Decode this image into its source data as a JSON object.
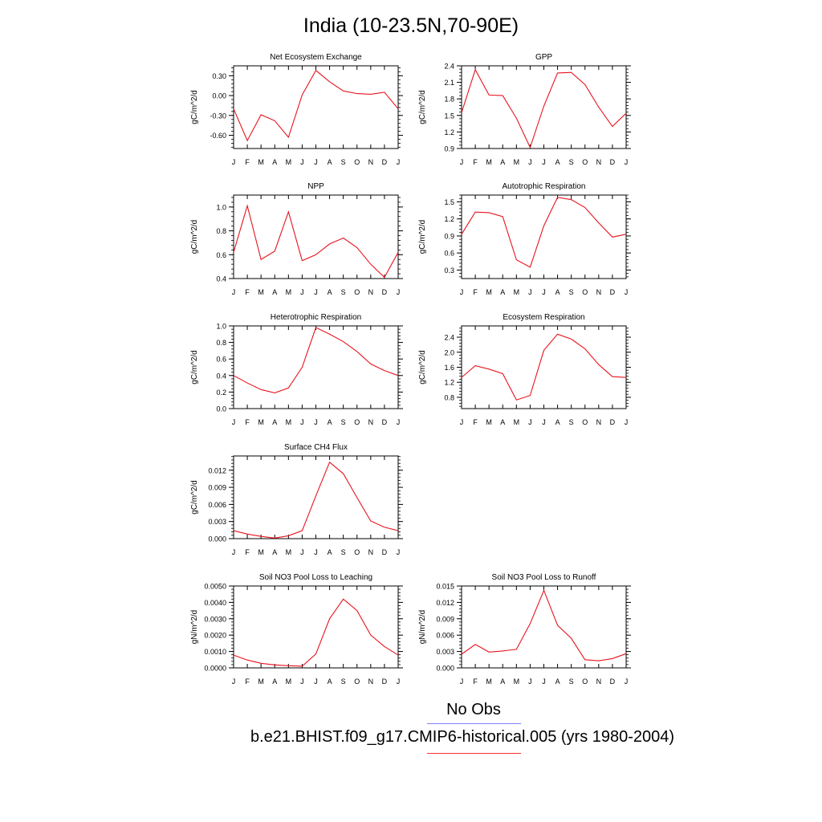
{
  "title": "India (10-23.5N,70-90E)",
  "legend": {
    "obs_label": "No Obs",
    "obs_color": "#8080ff",
    "model_label": "b.e21.BHIST.f09_g17.CMIP6-historical.005 (yrs 1980-2004)",
    "model_color": "#ff3030"
  },
  "series_color": "#e8141e",
  "chart_data": [
    {
      "type": "line",
      "title": "Net Ecosystem Exchange",
      "ylabel": "gC/m^2/d",
      "categories": [
        "J",
        "F",
        "M",
        "A",
        "M",
        "J",
        "J",
        "A",
        "S",
        "O",
        "N",
        "D",
        "J"
      ],
      "values": [
        -0.2,
        -0.68,
        -0.29,
        -0.38,
        -0.63,
        0.01,
        0.38,
        0.21,
        0.07,
        0.03,
        0.02,
        0.05,
        -0.2
      ],
      "ylim": [
        -0.8,
        0.45
      ],
      "yticks": [
        -0.6,
        -0.3,
        0.0,
        0.3
      ],
      "ytick_labels": [
        "-0.60",
        "-0.30",
        "0.00",
        "0.30"
      ]
    },
    {
      "type": "line",
      "title": "GPP",
      "ylabel": "gC/m^2/d",
      "categories": [
        "J",
        "F",
        "M",
        "A",
        "M",
        "J",
        "J",
        "A",
        "S",
        "O",
        "N",
        "D",
        "J"
      ],
      "values": [
        1.55,
        2.33,
        1.87,
        1.86,
        1.45,
        0.92,
        1.67,
        2.27,
        2.28,
        2.06,
        1.65,
        1.3,
        1.54
      ],
      "ylim": [
        0.9,
        2.4
      ],
      "yticks": [
        0.9,
        1.2,
        1.5,
        1.8,
        2.1,
        2.4
      ],
      "ytick_labels": [
        "0.9",
        "1.2",
        "1.5",
        "1.8",
        "2.1",
        "2.4"
      ]
    },
    {
      "type": "line",
      "title": "NPP",
      "ylabel": "gC/m^2/d",
      "categories": [
        "J",
        "F",
        "M",
        "A",
        "M",
        "J",
        "J",
        "A",
        "S",
        "O",
        "N",
        "D",
        "J"
      ],
      "values": [
        0.62,
        1.01,
        0.56,
        0.63,
        0.96,
        0.55,
        0.6,
        0.69,
        0.74,
        0.66,
        0.52,
        0.41,
        0.62
      ],
      "ylim": [
        0.4,
        1.1
      ],
      "yticks": [
        0.4,
        0.6,
        0.8,
        1.0
      ],
      "ytick_labels": [
        "0.4",
        "0.6",
        "0.8",
        "1.0"
      ]
    },
    {
      "type": "line",
      "title": "Autotrophic Respiration",
      "ylabel": "gC/m^2/d",
      "categories": [
        "J",
        "F",
        "M",
        "A",
        "M",
        "J",
        "J",
        "A",
        "S",
        "O",
        "N",
        "D",
        "J"
      ],
      "values": [
        0.93,
        1.32,
        1.31,
        1.24,
        0.48,
        0.35,
        1.08,
        1.58,
        1.54,
        1.4,
        1.13,
        0.88,
        0.93
      ],
      "ylim": [
        0.15,
        1.62
      ],
      "yticks": [
        0.3,
        0.6,
        0.9,
        1.2,
        1.5
      ],
      "ytick_labels": [
        "0.3",
        "0.6",
        "0.9",
        "1.2",
        "1.5"
      ]
    },
    {
      "type": "line",
      "title": "Heterotrophic Respiration",
      "ylabel": "gC/m^2/d",
      "categories": [
        "J",
        "F",
        "M",
        "A",
        "M",
        "J",
        "J",
        "A",
        "S",
        "O",
        "N",
        "D",
        "J"
      ],
      "values": [
        0.4,
        0.31,
        0.23,
        0.19,
        0.25,
        0.5,
        0.98,
        0.9,
        0.81,
        0.69,
        0.54,
        0.46,
        0.4
      ],
      "ylim": [
        0.0,
        1.0
      ],
      "yticks": [
        0.0,
        0.2,
        0.4,
        0.6,
        0.8,
        1.0
      ],
      "ytick_labels": [
        "0.0",
        "0.2",
        "0.4",
        "0.6",
        "0.8",
        "1.0"
      ]
    },
    {
      "type": "line",
      "title": "Ecosystem Respiration",
      "ylabel": "gC/m^2/d",
      "categories": [
        "J",
        "F",
        "M",
        "A",
        "M",
        "J",
        "J",
        "A",
        "S",
        "O",
        "N",
        "D",
        "J"
      ],
      "values": [
        1.33,
        1.64,
        1.55,
        1.43,
        0.73,
        0.85,
        2.05,
        2.48,
        2.35,
        2.09,
        1.67,
        1.35,
        1.33
      ],
      "ylim": [
        0.5,
        2.7
      ],
      "yticks": [
        0.8,
        1.2,
        1.6,
        2.0,
        2.4
      ],
      "ytick_labels": [
        "0.8",
        "1.2",
        "1.6",
        "2.0",
        "2.4"
      ]
    },
    {
      "type": "line",
      "title": "Surface CH4 Flux",
      "ylabel": "gC/m^2/d",
      "categories": [
        "J",
        "F",
        "M",
        "A",
        "M",
        "J",
        "J",
        "A",
        "S",
        "O",
        "N",
        "D",
        "J"
      ],
      "values": [
        0.0014,
        0.0008,
        0.0004,
        0.0001,
        0.0005,
        0.0014,
        0.0075,
        0.0134,
        0.0114,
        0.0072,
        0.0031,
        0.002,
        0.0014
      ],
      "ylim": [
        0.0,
        0.0145
      ],
      "yticks": [
        0.0,
        0.003,
        0.006,
        0.009,
        0.012
      ],
      "ytick_labels": [
        "0.000",
        "0.003",
        "0.006",
        "0.009",
        "0.012"
      ]
    },
    {
      "type": "line",
      "title": "Soil NO3 Pool Loss to Leaching",
      "ylabel": "gN/m^2/d",
      "categories": [
        "J",
        "F",
        "M",
        "A",
        "M",
        "J",
        "J",
        "A",
        "S",
        "O",
        "N",
        "D",
        "J"
      ],
      "values": [
        0.00078,
        0.00048,
        0.00028,
        0.00018,
        0.00013,
        0.0001,
        0.00085,
        0.003,
        0.0042,
        0.0035,
        0.002,
        0.0013,
        0.00078
      ],
      "ylim": [
        0.0,
        0.005
      ],
      "yticks": [
        0.0,
        0.001,
        0.002,
        0.003,
        0.004,
        0.005
      ],
      "ytick_labels": [
        "0.0000",
        "0.0010",
        "0.0020",
        "0.0030",
        "0.0040",
        "0.0050"
      ]
    },
    {
      "type": "line",
      "title": "Soil NO3 Pool Loss to Runoff",
      "ylabel": "gN/m^2/d",
      "categories": [
        "J",
        "F",
        "M",
        "A",
        "M",
        "J",
        "J",
        "A",
        "S",
        "O",
        "N",
        "D",
        "J"
      ],
      "values": [
        0.0025,
        0.0043,
        0.0029,
        0.0031,
        0.0034,
        0.0081,
        0.0142,
        0.0078,
        0.0054,
        0.0015,
        0.0013,
        0.0017,
        0.0026
      ],
      "ylim": [
        0.0,
        0.015
      ],
      "yticks": [
        0.0,
        0.003,
        0.006,
        0.009,
        0.012,
        0.015
      ],
      "ytick_labels": [
        "0.000",
        "0.003",
        "0.006",
        "0.009",
        "0.012",
        "0.015"
      ]
    }
  ]
}
